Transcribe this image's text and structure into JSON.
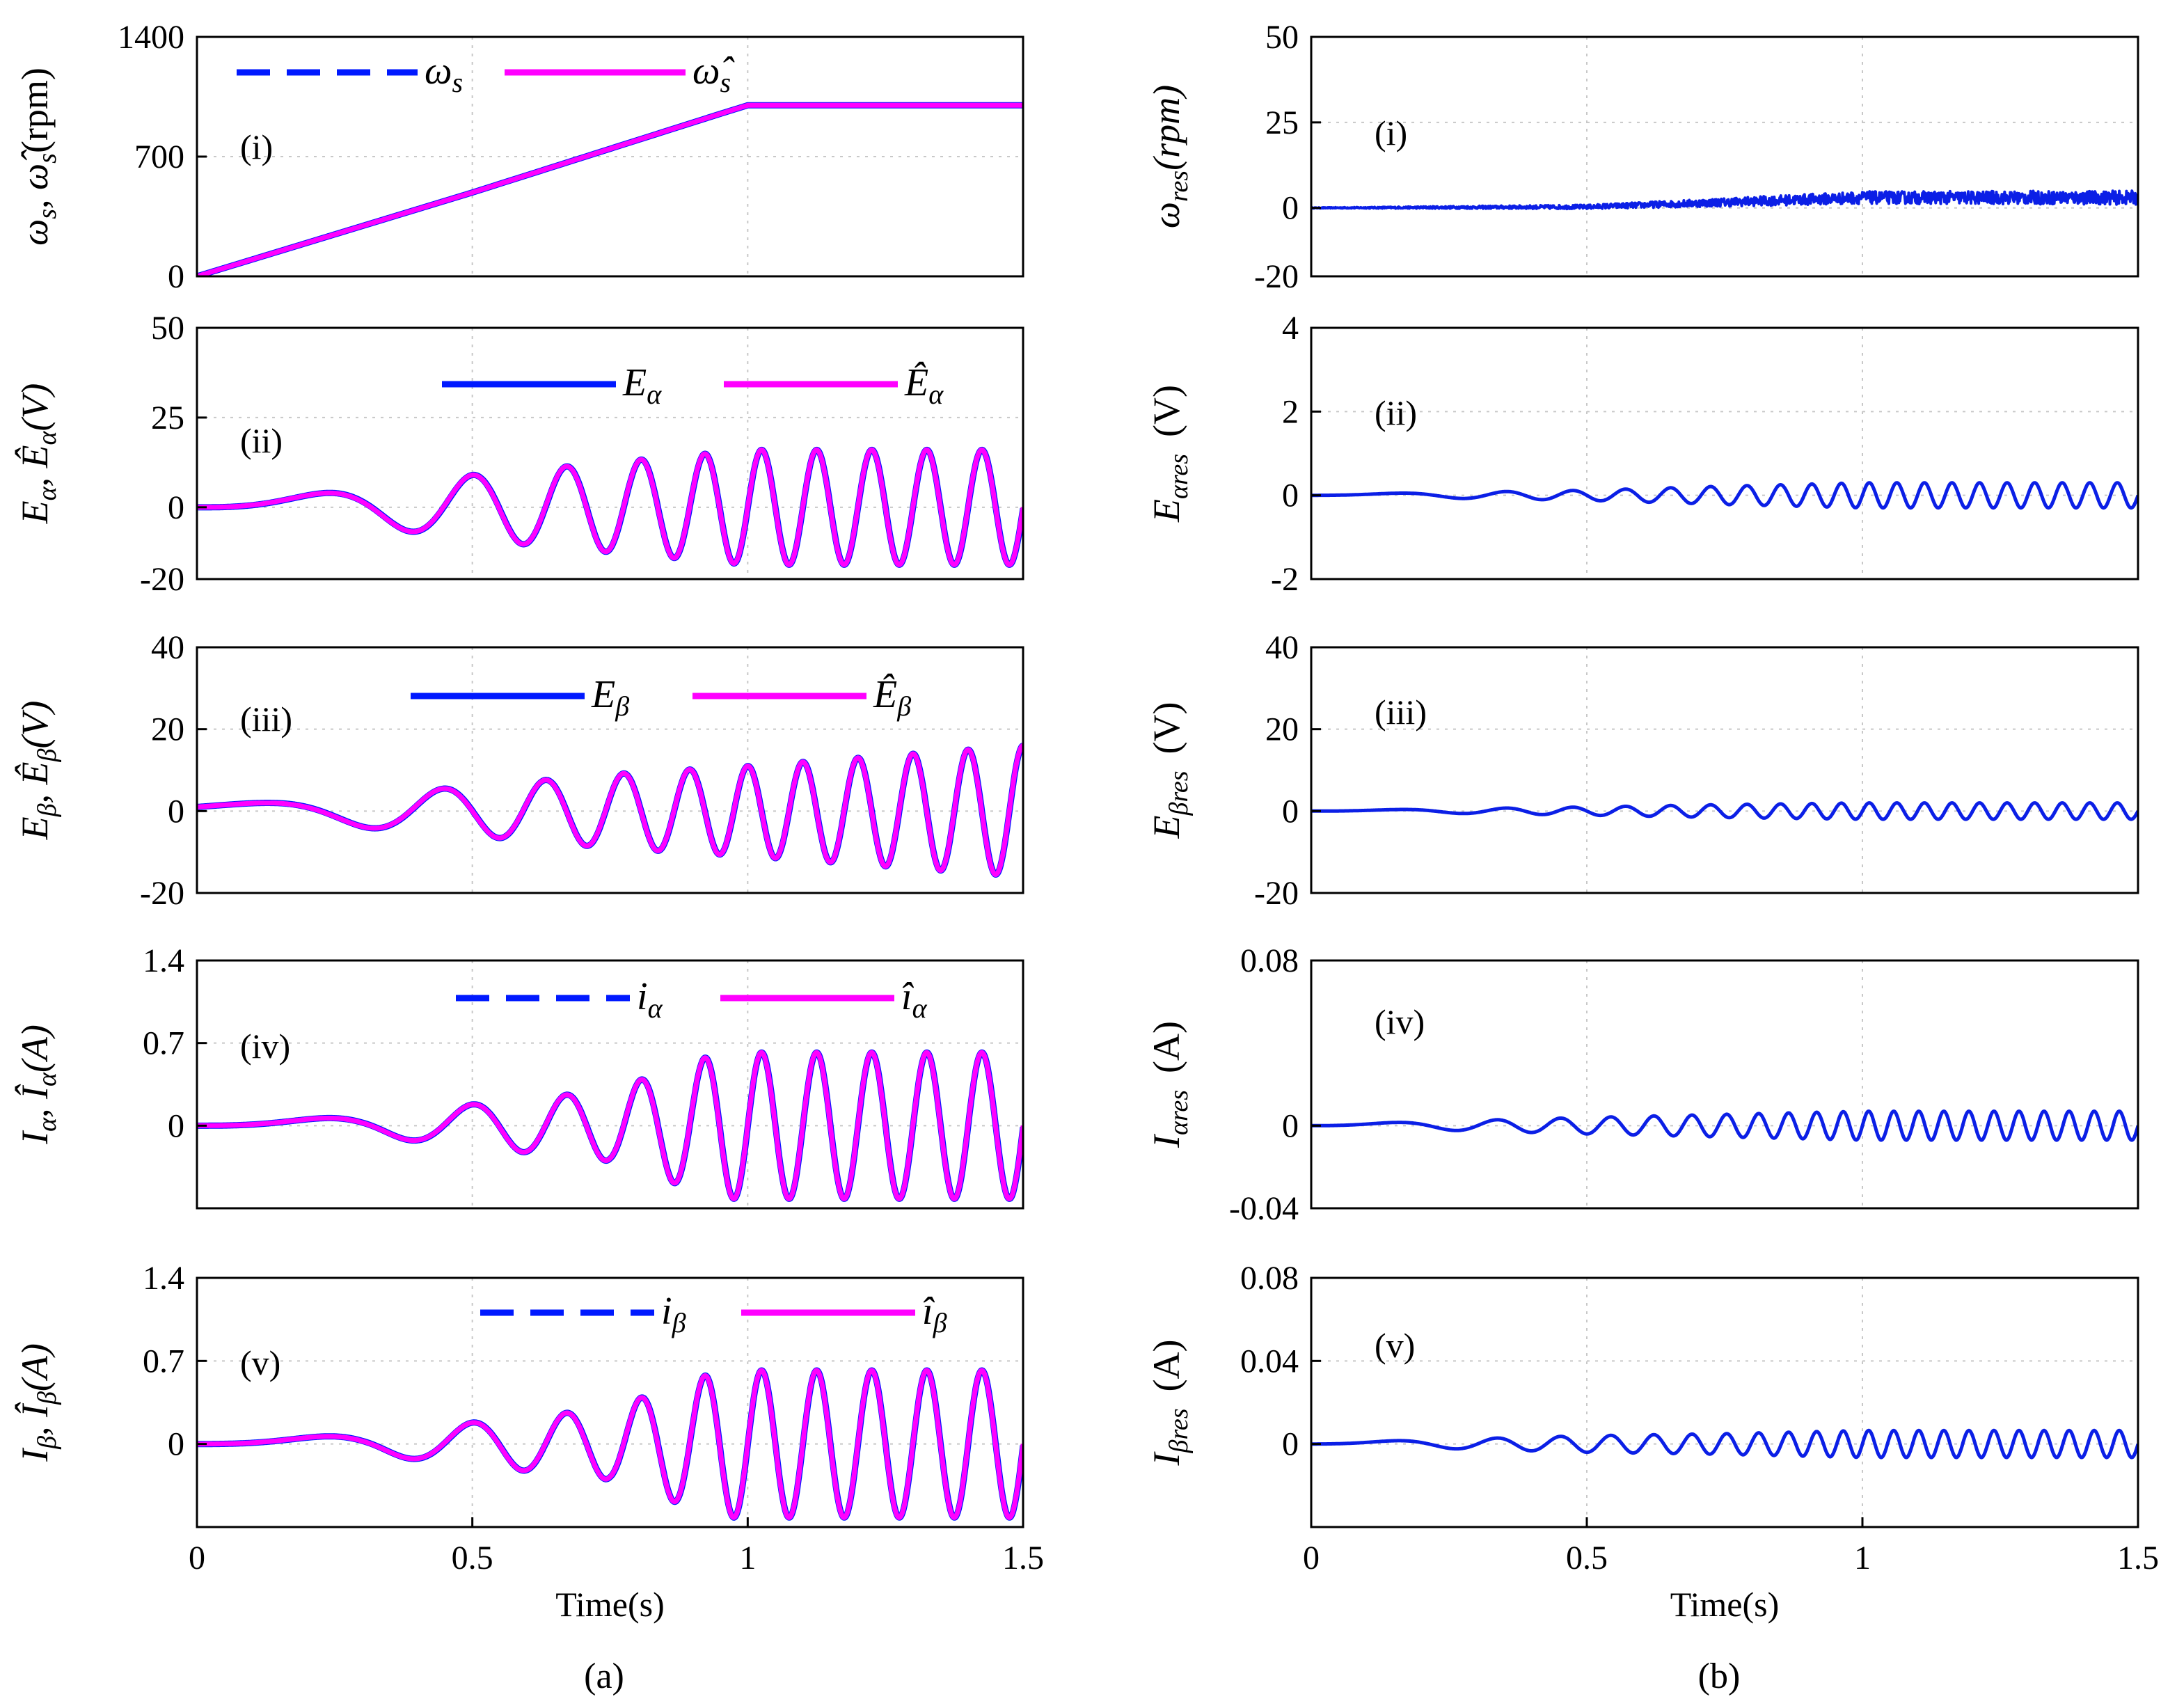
{
  "colors": {
    "measured": "#0019ff",
    "estimated": "#ff00ff",
    "residual": "#0b1fe6"
  },
  "chart_data": [
    {
      "id": "a-i",
      "type": "line",
      "panel_label": "(i)",
      "ylabel_parts": [
        "ω",
        "s",
        ", ",
        "ω̂",
        "s",
        "(rpm)"
      ],
      "ylim": [
        0,
        1400
      ],
      "yticks": [
        "0",
        "700",
        "1400"
      ],
      "xlim": [
        0,
        1.5
      ],
      "grid": true,
      "legend": [
        {
          "name": "ω",
          "sub": "s",
          "style": "dashed"
        },
        {
          "name": "ω̂",
          "sub": "s",
          "style": "solid"
        }
      ],
      "series": [
        {
          "name": "ωs",
          "x": [
            0,
            0.5,
            0.95,
            1.0,
            1.5
          ],
          "y": [
            0,
            490,
            950,
            1000,
            1000
          ]
        },
        {
          "name": "ω̂s",
          "x": [
            0,
            0.5,
            0.95,
            1.0,
            1.5
          ],
          "y": [
            0,
            490,
            950,
            1000,
            1000
          ]
        }
      ]
    },
    {
      "id": "a-ii",
      "type": "line",
      "panel_label": "(ii)",
      "ylabel_parts": [
        "E",
        "α",
        ", ",
        "Ê",
        "α",
        "(V)"
      ],
      "ylim": [
        -20,
        50
      ],
      "yticks": [
        "-20",
        "0",
        "25",
        "50"
      ],
      "xlim": [
        0,
        1.5
      ],
      "grid": true,
      "legend": [
        {
          "name": "E",
          "sub": "α",
          "style": "solid"
        },
        {
          "name": "Ê",
          "sub": "α",
          "style": "solid"
        }
      ],
      "series": [
        {
          "name": "Eα",
          "x": [
            0,
            0.3,
            0.5,
            0.75,
            1.0,
            1.5
          ],
          "y_envelope": [
            0.5,
            5,
            9,
            12.5,
            16,
            16
          ]
        },
        {
          "name": "Êα",
          "x": [
            0,
            0.3,
            0.5,
            0.75,
            1.0,
            1.5
          ],
          "y_envelope": [
            0.5,
            5,
            9,
            12.5,
            16,
            16
          ]
        }
      ]
    },
    {
      "id": "a-iii",
      "type": "line",
      "panel_label": "(iii)",
      "ylabel_parts": [
        "E",
        "β",
        ", ",
        "Ê",
        "β",
        "(V)"
      ],
      "ylim": [
        -20,
        40
      ],
      "yticks": [
        "-20",
        "0",
        "20",
        "40"
      ],
      "xlim": [
        0,
        1.5
      ],
      "grid": true,
      "legend": [
        {
          "name": "E",
          "sub": "β",
          "style": "solid"
        },
        {
          "name": "Ê",
          "sub": "β",
          "style": "solid"
        }
      ],
      "series": [
        {
          "name": "Eβ",
          "x": [
            0,
            0.3,
            0.5,
            0.75,
            1.0,
            1.5
          ],
          "y_envelope": [
            1,
            4,
            6,
            9,
            11,
            16
          ]
        },
        {
          "name": "Êβ",
          "x": [
            0,
            0.3,
            0.5,
            0.75,
            1.0,
            1.5
          ],
          "y_envelope": [
            1,
            4,
            6,
            9,
            11,
            16
          ]
        }
      ]
    },
    {
      "id": "a-iv",
      "type": "line",
      "panel_label": "(iv)",
      "ylabel_parts": [
        "I",
        "α",
        ", ",
        "Î",
        "α",
        "(A)"
      ],
      "ylim": [
        -0.7,
        1.4
      ],
      "yticks": [
        "0",
        "0.7",
        "1.4"
      ],
      "xlim": [
        0,
        1.5
      ],
      "grid": true,
      "legend": [
        {
          "name": "i",
          "sub": "α",
          "style": "dashed"
        },
        {
          "name": "î",
          "sub": "α",
          "style": "solid"
        }
      ],
      "series": [
        {
          "name": "iα",
          "x": [
            0,
            0.3,
            0.5,
            0.75,
            0.95,
            1.5
          ],
          "y_envelope": [
            0.01,
            0.08,
            0.18,
            0.3,
            0.62,
            0.62
          ]
        },
        {
          "name": "îα",
          "x": [
            0,
            0.3,
            0.5,
            0.75,
            0.95,
            1.5
          ],
          "y_envelope": [
            0.01,
            0.08,
            0.18,
            0.3,
            0.62,
            0.62
          ]
        }
      ]
    },
    {
      "id": "a-v",
      "type": "line",
      "panel_label": "(v)",
      "ylabel_parts": [
        "I",
        "β",
        ", ",
        "Î",
        "β",
        "(A)"
      ],
      "ylim": [
        -0.7,
        1.4
      ],
      "yticks": [
        "0",
        "0.7",
        "1.4"
      ],
      "xlim": [
        0,
        1.5
      ],
      "xticks": [
        "0",
        "0.5",
        "1",
        "1.5"
      ],
      "xlabel": "Time(s)",
      "grid": true,
      "legend": [
        {
          "name": "i",
          "sub": "β",
          "style": "dashed"
        },
        {
          "name": "î",
          "sub": "β",
          "style": "solid"
        }
      ],
      "series": [
        {
          "name": "iβ",
          "x": [
            0,
            0.3,
            0.5,
            0.75,
            0.95,
            1.5
          ],
          "y_envelope": [
            0.01,
            0.08,
            0.18,
            0.3,
            0.62,
            0.62
          ]
        },
        {
          "name": "îβ",
          "x": [
            0,
            0.3,
            0.5,
            0.75,
            0.95,
            1.5
          ],
          "y_envelope": [
            0.01,
            0.08,
            0.18,
            0.3,
            0.62,
            0.62
          ]
        }
      ]
    },
    {
      "id": "b-i",
      "type": "line",
      "panel_label": "(i)",
      "ylabel_parts": [
        "ω",
        "res",
        "(rpm)"
      ],
      "ylim": [
        -20,
        50
      ],
      "yticks": [
        "-20",
        "0",
        "25",
        "50"
      ],
      "xlim": [
        0,
        1.5
      ],
      "grid": true,
      "series": [
        {
          "name": "ωres",
          "x": [
            0,
            0.5,
            1.0,
            1.5
          ],
          "y": [
            0,
            0.3,
            3,
            3
          ],
          "noise": [
            0.1,
            0.6,
            1.8,
            2.0
          ]
        }
      ]
    },
    {
      "id": "b-ii",
      "type": "line",
      "panel_label": "(ii)",
      "ylabel_parts": [
        "E",
        "αres",
        "(V)"
      ],
      "ylim": [
        -2,
        4
      ],
      "yticks": [
        "-2",
        "0",
        "2",
        "4"
      ],
      "xlim": [
        0,
        1.5
      ],
      "grid": true,
      "series": [
        {
          "name": "Eαres",
          "x": [
            0,
            0.5,
            0.75,
            1.0,
            1.5
          ],
          "y_envelope": [
            0.02,
            0.12,
            0.22,
            0.3,
            0.3
          ]
        }
      ]
    },
    {
      "id": "b-iii",
      "type": "line",
      "panel_label": "(iii)",
      "ylabel_parts": [
        "E",
        "βres",
        "(V)"
      ],
      "ylim": [
        -20,
        40
      ],
      "yticks": [
        "-20",
        "0",
        "20",
        "40"
      ],
      "xlim": [
        0,
        1.5
      ],
      "grid": true,
      "series": [
        {
          "name": "Eβres",
          "x": [
            0,
            0.5,
            0.75,
            1.0,
            1.5
          ],
          "y_envelope": [
            0.1,
            1,
            1.6,
            2,
            2
          ]
        }
      ]
    },
    {
      "id": "b-iv",
      "type": "line",
      "panel_label": "(iv)",
      "ylabel_parts": [
        "I",
        "αres",
        "(A)"
      ],
      "ylim": [
        -0.04,
        0.08
      ],
      "yticks": [
        "-0.04",
        "0",
        "0.08"
      ],
      "xlim": [
        0,
        1.5
      ],
      "grid": true,
      "series": [
        {
          "name": "Iαres",
          "x": [
            0,
            0.5,
            0.75,
            1.0,
            1.5
          ],
          "y_envelope": [
            0.0005,
            0.004,
            0.0055,
            0.007,
            0.007
          ]
        }
      ]
    },
    {
      "id": "b-v",
      "type": "line",
      "panel_label": "(v)",
      "ylabel_parts": [
        "I",
        "βres",
        "(A)"
      ],
      "ylim": [
        -0.04,
        0.08
      ],
      "yticks": [
        "0",
        "0.04",
        "0.08"
      ],
      "xlim": [
        0,
        1.5
      ],
      "xticks": [
        "0",
        "0.5",
        "1",
        "1.5"
      ],
      "xlabel": "Time(s)",
      "grid": true,
      "series": [
        {
          "name": "Iβres",
          "x": [
            0,
            0.5,
            0.75,
            1.0,
            1.5
          ],
          "y_envelope": [
            0.0005,
            0.004,
            0.005,
            0.0065,
            0.0065
          ]
        }
      ]
    }
  ],
  "captions": {
    "a": "(a)",
    "b": "(b)"
  }
}
